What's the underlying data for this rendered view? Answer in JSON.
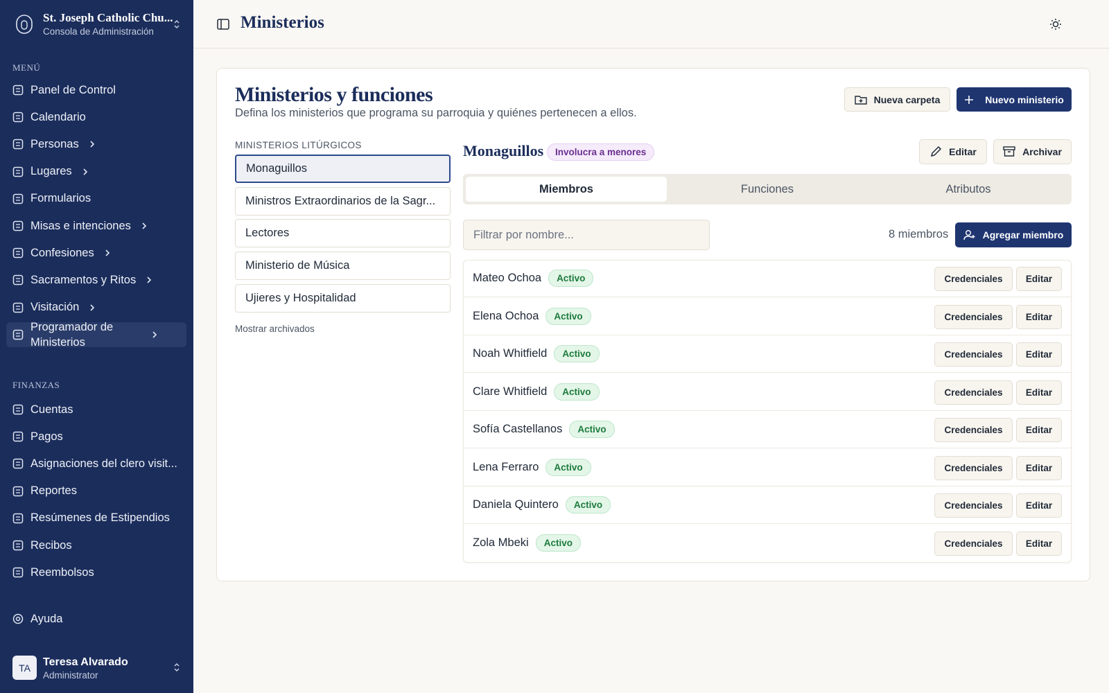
{
  "sidebar": {
    "org_name": "St. Joseph Catholic Chu...",
    "org_subtitle": "Consola de Administración",
    "menu_heading": "MENÚ",
    "menu": [
      {
        "label": "Panel de Control"
      },
      {
        "label": "Calendario"
      },
      {
        "label": "Personas",
        "expandable": true
      },
      {
        "label": "Lugares",
        "expandable": true
      },
      {
        "label": "Formularios"
      },
      {
        "label": "Misas e intenciones",
        "expandable": true
      },
      {
        "label": "Confesiones",
        "expandable": true
      },
      {
        "label": "Sacramentos y Ritos",
        "expandable": true
      },
      {
        "label": "Visitación",
        "expandable": true
      },
      {
        "label": "Programador de Ministerios",
        "expandable": true,
        "active": true
      }
    ],
    "finance_heading": "FINANZAS",
    "finance": [
      {
        "label": "Cuentas"
      },
      {
        "label": "Pagos"
      },
      {
        "label": "Asignaciones del clero visit..."
      },
      {
        "label": "Reportes"
      },
      {
        "label": "Resúmenes de Estipendios"
      },
      {
        "label": "Recibos"
      },
      {
        "label": "Reembolsos"
      }
    ],
    "help": "Ayuda",
    "user": {
      "initials": "TA",
      "name": "Teresa Alvarado",
      "role": "Administrator"
    }
  },
  "header": {
    "title": "Ministerios"
  },
  "page": {
    "title": "Ministerios y funciones",
    "subtitle": "Defina los ministerios que programa su parroquia y quiénes pertenecen a ellos.",
    "actions": [
      "Nueva carpeta",
      "Nuevo ministerio"
    ],
    "list_heading": "MINISTERIOS LITÚRGICOS",
    "ministries": [
      "Monaguillos",
      "Ministros Extraordinarios de la Sagr...",
      "Lectores",
      "Ministerio de Música",
      "Ujieres y Hospitalidad"
    ],
    "show_archived": "Mostrar archivados",
    "detail": {
      "name": "Monaguillos",
      "badge": "Involucra a menores",
      "actions": [
        "Editar",
        "Archivar"
      ],
      "tabs": [
        "Miembros",
        "Funciones",
        "Atributos"
      ],
      "filter_placeholder": "Filtrar por nombre...",
      "member_count": "8 miembros",
      "add_member": "Agregar miembro",
      "row_actions": [
        "Credenciales",
        "Editar"
      ],
      "members": [
        {
          "name": "Mateo Ochoa",
          "status": "Activo"
        },
        {
          "name": "Elena Ochoa",
          "status": "Activo"
        },
        {
          "name": "Noah Whitfield",
          "status": "Activo"
        },
        {
          "name": "Clare Whitfield",
          "status": "Activo"
        },
        {
          "name": "Sofía Castellanos",
          "status": "Activo"
        },
        {
          "name": "Lena Ferraro",
          "status": "Activo"
        },
        {
          "name": "Daniela Quintero",
          "status": "Activo"
        },
        {
          "name": "Zola Mbeki",
          "status": "Activo"
        }
      ]
    }
  }
}
